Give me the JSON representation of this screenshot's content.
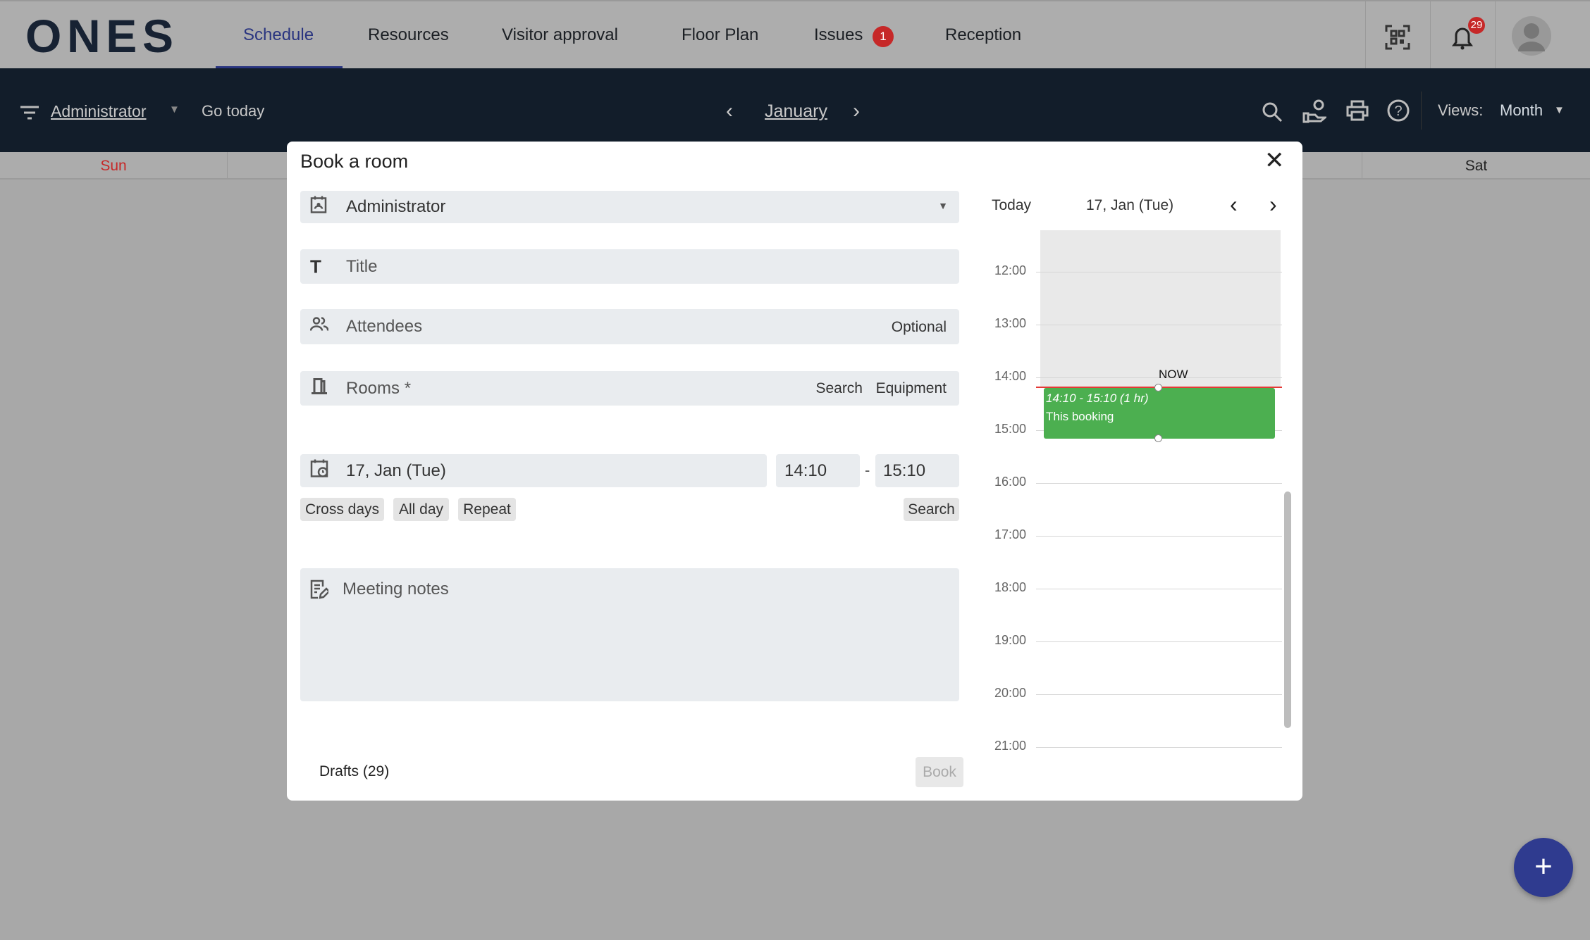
{
  "app": {
    "logo": "ONES"
  },
  "nav": {
    "items": [
      {
        "label": "Schedule",
        "active": true
      },
      {
        "label": "Resources"
      },
      {
        "label": "Visitor approval"
      },
      {
        "label": "Floor Plan"
      },
      {
        "label": "Issues",
        "badge": "1"
      },
      {
        "label": "Reception"
      }
    ],
    "notifications_count": "29",
    "icons": [
      "qr-code-icon",
      "bell-icon",
      "avatar"
    ]
  },
  "toolbar": {
    "user": "Administrator",
    "go_today": "Go today",
    "month": "January",
    "views_label": "Views:",
    "view": "Month"
  },
  "calendar": {
    "days": [
      "Sun",
      "Sat"
    ],
    "sunday_color": "#c62828"
  },
  "modal": {
    "title": "Book a room",
    "organizer": "Administrator",
    "title_placeholder": "Title",
    "attendees_placeholder": "Attendees",
    "attendees_hint": "Optional",
    "rooms_placeholder": "Rooms *",
    "rooms_search": "Search",
    "rooms_equipment": "Equipment",
    "date": "17, Jan (Tue)",
    "start_time": "14:10",
    "time_sep": "-",
    "end_time": "15:10",
    "options": [
      "Cross days",
      "All day",
      "Repeat"
    ],
    "search": "Search",
    "notes_placeholder": "Meeting notes",
    "drafts": "Drafts (29)",
    "book": "Book"
  },
  "timeline": {
    "today": "Today",
    "date": "17, Jan (Tue)",
    "hours": [
      "12:00",
      "13:00",
      "14:00",
      "15:00",
      "16:00",
      "17:00",
      "18:00",
      "19:00",
      "20:00",
      "21:00"
    ],
    "now_label": "NOW",
    "booking_time": "14:10 - 15:10 (1 hr)",
    "booking_label": "This booking",
    "booking_color": "#4caf50"
  }
}
